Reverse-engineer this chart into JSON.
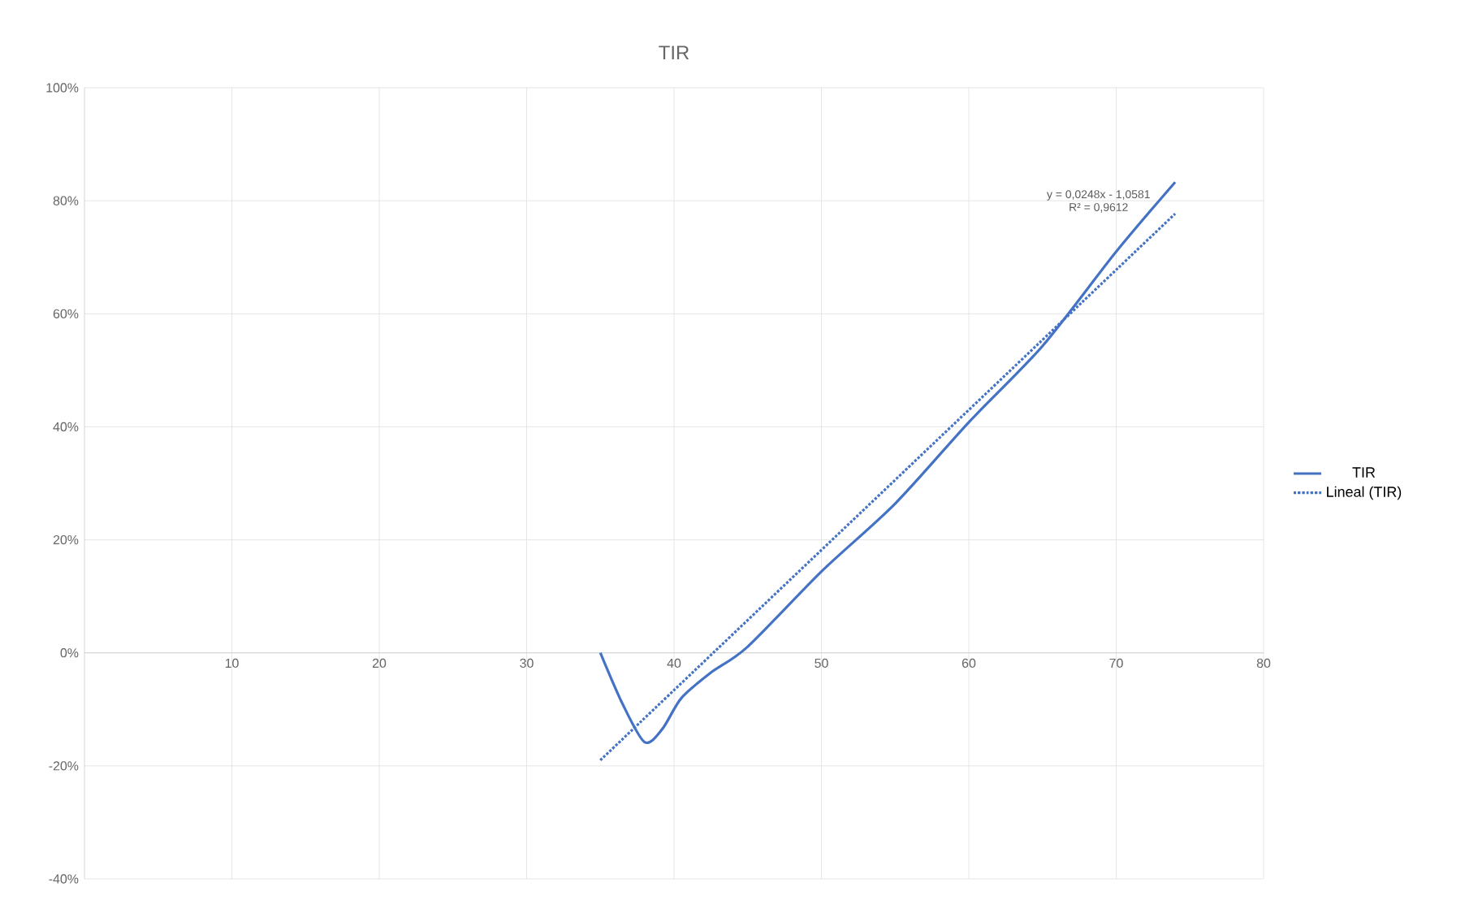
{
  "chart_data": {
    "type": "line",
    "title": "TIR",
    "xlim": [
      0,
      80
    ],
    "xticks": [
      {
        "value": 0,
        "label": null
      },
      10,
      20,
      30,
      40,
      50,
      60,
      70,
      80
    ],
    "ylim": [
      -40,
      100
    ],
    "yticks": [
      {
        "value": -40,
        "label": "-40%"
      },
      {
        "value": -20,
        "label": "-20%"
      },
      {
        "value": 0,
        "label": "0%"
      },
      {
        "value": 20,
        "label": "20%"
      },
      {
        "value": 40,
        "label": "40%"
      },
      {
        "value": 60,
        "label": "60%"
      },
      {
        "value": 80,
        "label": "80%"
      },
      {
        "value": 100,
        "label": "100%"
      }
    ],
    "grid": true,
    "legend": "right",
    "marker": "none",
    "series": [
      {
        "name": "TIR",
        "color": "#4472c4",
        "line_style": "solid",
        "x": [
          35,
          36.5,
          38,
          39.2,
          40.5,
          42.5,
          45,
          50,
          55,
          60,
          65,
          70,
          74
        ],
        "values": [
          0,
          -9,
          -15.8,
          -13.5,
          -8,
          -3.5,
          1.1,
          14.4,
          26.4,
          40.8,
          54.3,
          71,
          83.3
        ]
      },
      {
        "name": "Lineal (TIR)",
        "color": "#4472c4",
        "line_style": "dotted",
        "x": [
          35,
          74
        ],
        "values": [
          -19.0,
          77.7
        ]
      }
    ],
    "annotations": [
      "y = 0,0248x - 1,0581",
      "R² = 0,9612"
    ]
  }
}
